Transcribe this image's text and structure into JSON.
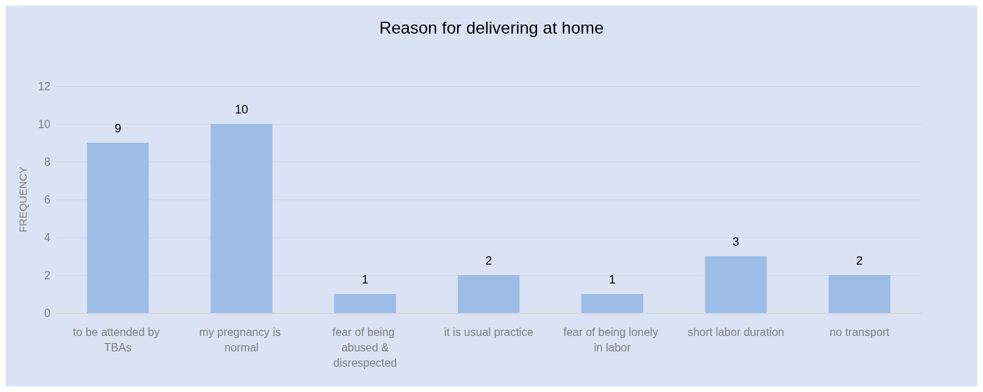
{
  "chart_data": {
    "type": "bar",
    "title": "Reason for delivering at home",
    "ylabel": "FREQUENCY",
    "categories": [
      "to be attended by TBAs",
      "my pregnancy is normal",
      "fear of being abused &disrespected",
      "it is usual practice",
      "fear of being lonely in labor",
      "short labor duration",
      "no transport"
    ],
    "values": [
      9,
      10,
      1,
      2,
      1,
      3,
      2
    ],
    "color": "#9dbde6",
    "ylim": [
      0,
      12
    ],
    "yticks": [
      0,
      2,
      4,
      6,
      8,
      10,
      12
    ],
    "grid": "y",
    "data_labels": true
  }
}
